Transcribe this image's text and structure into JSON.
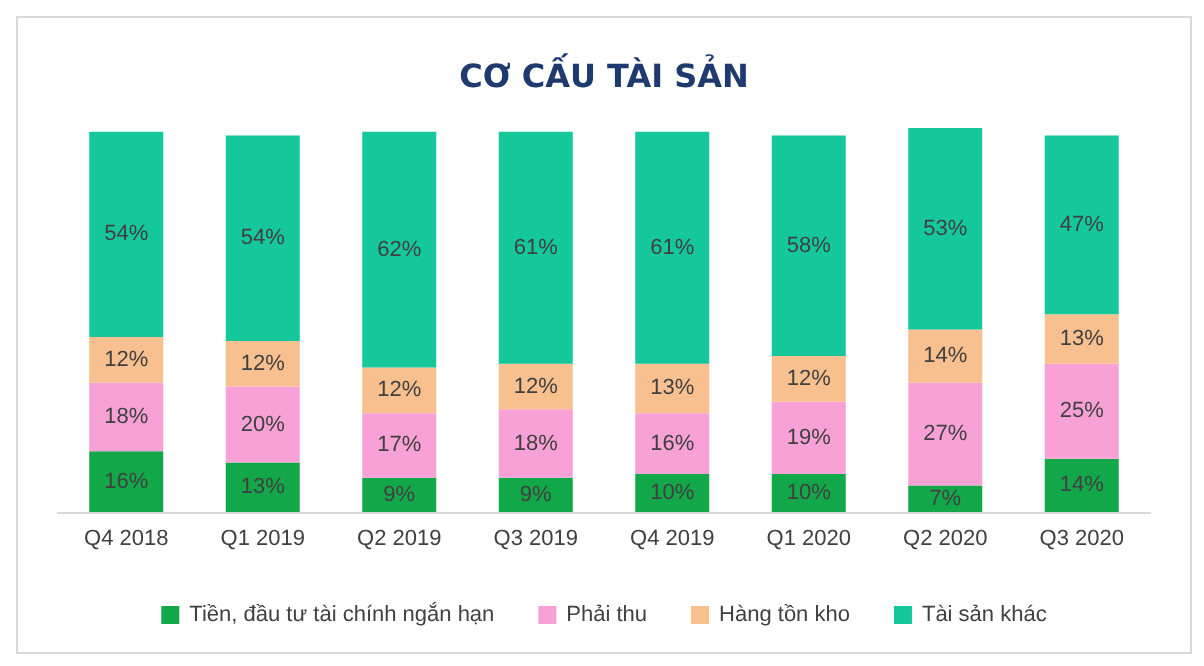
{
  "chart_data": {
    "type": "bar",
    "title": "CƠ CẤU TÀI SẢN",
    "stacked": true,
    "legend": "bottom",
    "grid": false,
    "categories": [
      "Q4 2018",
      "Q1 2019",
      "Q2 2019",
      "Q3 2019",
      "Q4 2019",
      "Q1 2020",
      "Q2 2020",
      "Q3 2020"
    ],
    "series": [
      {
        "name": "Tiền, đầu tư tài chính ngắn hạn",
        "color": "#12a84a",
        "values": [
          16,
          13,
          9,
          9,
          10,
          10,
          7,
          14
        ],
        "value_labels": [
          "16%",
          "13%",
          "9%",
          "9%",
          "10%",
          "10%",
          "7%",
          "14%"
        ]
      },
      {
        "name": "Phải thu",
        "color": "#f8a1d6",
        "values": [
          18,
          20,
          17,
          18,
          16,
          19,
          27,
          25
        ],
        "value_labels": [
          "18%",
          "20%",
          "17%",
          "18%",
          "16%",
          "19%",
          "27%",
          "25%"
        ]
      },
      {
        "name": "Hàng tồn kho",
        "color": "#f9c08f",
        "values": [
          12,
          12,
          12,
          12,
          13,
          12,
          14,
          13
        ],
        "value_labels": [
          "12%",
          "12%",
          "12%",
          "12%",
          "13%",
          "12%",
          "14%",
          "13%"
        ]
      },
      {
        "name": "Tài sản khác",
        "color": "#14c89b",
        "values": [
          54,
          54,
          62,
          61,
          61,
          58,
          53,
          47
        ],
        "value_labels": [
          "54%",
          "54%",
          "62%",
          "61%",
          "61%",
          "58%",
          "53%",
          "47%"
        ]
      }
    ]
  }
}
